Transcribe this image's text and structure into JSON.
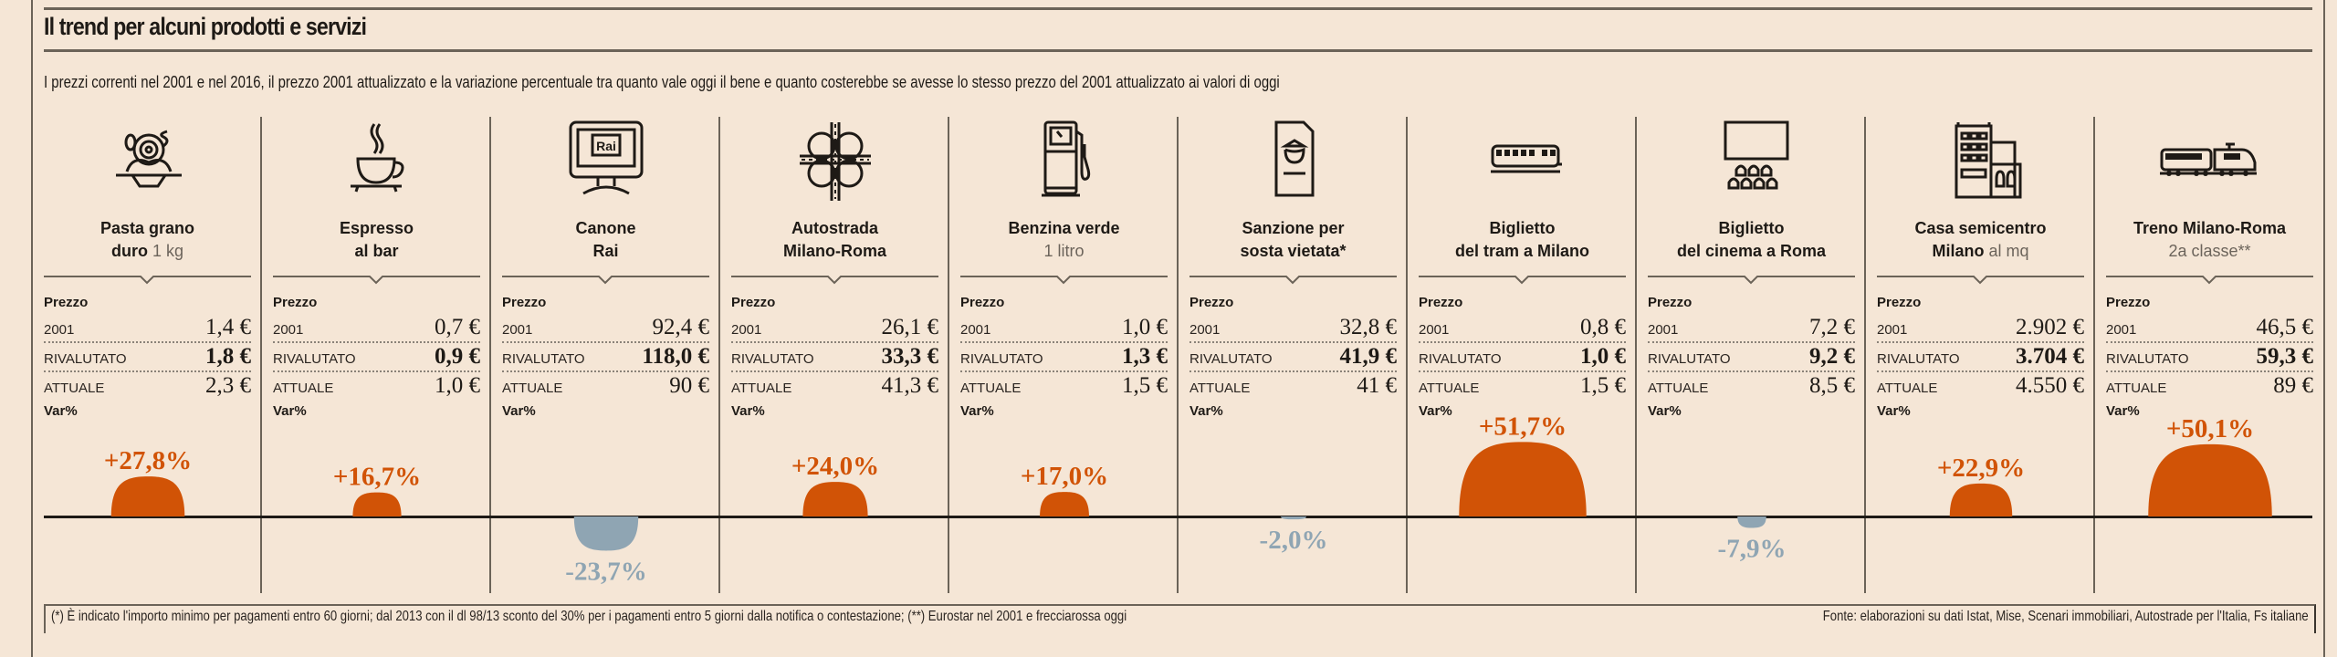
{
  "header": {
    "title": "Il trend per alcuni prodotti e servizi",
    "subtitle": "I prezzi correnti nel 2001 e nel 2016, il prezzo 2001 attualizzato e la variazione percentuale tra quanto vale oggi il bene e quanto costerebbe se avesse lo stesso prezzo del 2001 attualizzato ai valori di oggi"
  },
  "labels": {
    "price_header": "Prezzo",
    "row_2001": "2001",
    "row_rivalutato": "RIVALUTATO",
    "row_attuale": "ATTUALE",
    "var_header": "Var%"
  },
  "colors": {
    "positive": "#d15306",
    "negative": "#8fa5b3",
    "background": "#f5e6d6"
  },
  "products": [
    {
      "icon": "pasta-icon",
      "name_bold": "Pasta grano",
      "name_bold2": "duro",
      "name_sub": " 1 kg",
      "p2001": "1,4 €",
      "rivalutato": "1,8 €",
      "attuale": "2,3 €",
      "var_label": "+27,8%"
    },
    {
      "icon": "espresso-cup-icon",
      "name_bold": "Espresso",
      "name_bold2": "al bar",
      "name_sub": "",
      "p2001": "0,7 €",
      "rivalutato": "0,9 €",
      "attuale": "1,0 €",
      "var_label": "+16,7%"
    },
    {
      "icon": "tv-rai-icon",
      "name_bold": "Canone",
      "name_bold2": "Rai",
      "name_sub": "",
      "p2001": "92,4 €",
      "rivalutato": "118,0 €",
      "attuale": "90 €",
      "var_label": "-23,7%"
    },
    {
      "icon": "highway-interchange-icon",
      "name_bold": "Autostrada",
      "name_bold2": "Milano-Roma",
      "name_sub": "",
      "p2001": "26,1 €",
      "rivalutato": "33,3 €",
      "attuale": "41,3 €",
      "var_label": "+24,0%"
    },
    {
      "icon": "fuel-pump-icon",
      "name_bold": "Benzina verde",
      "name_bold2": "",
      "name_sub": "1 litro",
      "p2001": "1,0 €",
      "rivalutato": "1,3 €",
      "attuale": "1,5 €",
      "var_label": "+17,0%"
    },
    {
      "icon": "parking-ticket-icon",
      "name_bold": "Sanzione per",
      "name_bold2": "sosta vietata*",
      "name_sub": "",
      "p2001": "32,8 €",
      "rivalutato": "41,9 €",
      "attuale": "41 €",
      "var_label": "-2,0%"
    },
    {
      "icon": "tram-icon",
      "name_bold": "Biglietto",
      "name_bold2": "del tram a Milano",
      "name_sub": "",
      "p2001": "0,8 €",
      "rivalutato": "1,0 €",
      "attuale": "1,5 €",
      "var_label": "+51,7%"
    },
    {
      "icon": "cinema-icon",
      "name_bold": "Biglietto",
      "name_bold2": "del cinema a Roma",
      "name_sub": "",
      "p2001": "7,2 €",
      "rivalutato": "9,2 €",
      "attuale": "8,5 €",
      "var_label": "-7,9%"
    },
    {
      "icon": "buildings-icon",
      "name_bold": "Casa semicentro",
      "name_bold2": "Milano",
      "name_sub": " al mq",
      "p2001": "2.902 €",
      "rivalutato": "3.704 €",
      "attuale": "4.550 €",
      "var_label": "+22,9%"
    },
    {
      "icon": "train-icon",
      "name_bold": "Treno Milano-Roma",
      "name_bold2": "",
      "name_sub": "2a classe**",
      "p2001": "46,5 €",
      "rivalutato": "59,3 €",
      "attuale": "89 €",
      "var_label": "+50,1%"
    }
  ],
  "chart_data": {
    "type": "bar",
    "title": "Var%",
    "categories": [
      "Pasta grano duro 1 kg",
      "Espresso al bar",
      "Canone Rai",
      "Autostrada Milano-Roma",
      "Benzina verde 1 litro",
      "Sanzione per sosta vietata*",
      "Biglietto del tram a Milano",
      "Biglietto del cinema a Roma",
      "Casa semicentro Milano al mq",
      "Treno Milano-Roma 2a classe**"
    ],
    "values": [
      27.8,
      16.7,
      -23.7,
      24.0,
      17.0,
      -2.0,
      51.7,
      -7.9,
      22.9,
      50.1
    ],
    "data_labels": [
      "+27,8%",
      "+16,7%",
      "-23,7%",
      "+24,0%",
      "+17,0%",
      "-2,0%",
      "+51,7%",
      "-7,9%",
      "+22,9%",
      "+50,1%"
    ],
    "series": [
      {
        "name": "Prezzo 2001 (€)",
        "values": [
          1.4,
          0.7,
          92.4,
          26.1,
          1.0,
          32.8,
          0.8,
          7.2,
          2902,
          46.5
        ]
      },
      {
        "name": "Rivalutato (€)",
        "values": [
          1.8,
          0.9,
          118.0,
          33.3,
          1.3,
          41.9,
          1.0,
          9.2,
          3704,
          59.3
        ]
      },
      {
        "name": "Attuale (€)",
        "values": [
          2.3,
          1.0,
          90,
          41.3,
          1.5,
          41,
          1.5,
          8.5,
          4550,
          89
        ]
      }
    ],
    "xlabel": "",
    "ylabel": "Var%",
    "ylim": [
      -30,
      55
    ],
    "grid": false,
    "legend": "none"
  },
  "footer": {
    "note": "(*) È indicato l'importo minimo per pagamenti entro 60 giorni; dal 2013 con il dl 98/13 sconto del 30% per i pagamenti entro 5 giorni dalla notifica o contestazione; (**) Eurostar nel 2001 e frecciarossa oggi",
    "source": "Fonte: elaborazioni su dati Istat, Mise, Scenari immobiliari, Autostrade per l'Italia, Fs italiane"
  }
}
